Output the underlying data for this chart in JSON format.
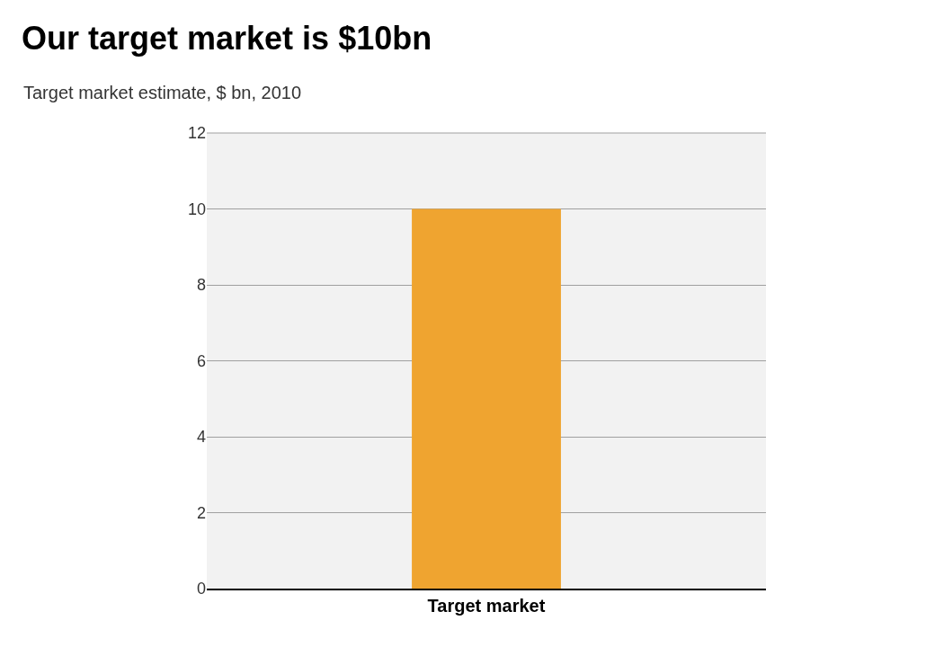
{
  "chart_data": {
    "type": "bar",
    "title": "Our target market is $10bn",
    "subtitle": "Target market estimate, $ bn, 2010",
    "categories": [
      "Target market"
    ],
    "values": [
      10
    ],
    "color": "#efa430",
    "ylim": [
      0,
      12
    ],
    "yticks": [
      0,
      2,
      4,
      6,
      8,
      10,
      12
    ],
    "grid": "y"
  }
}
